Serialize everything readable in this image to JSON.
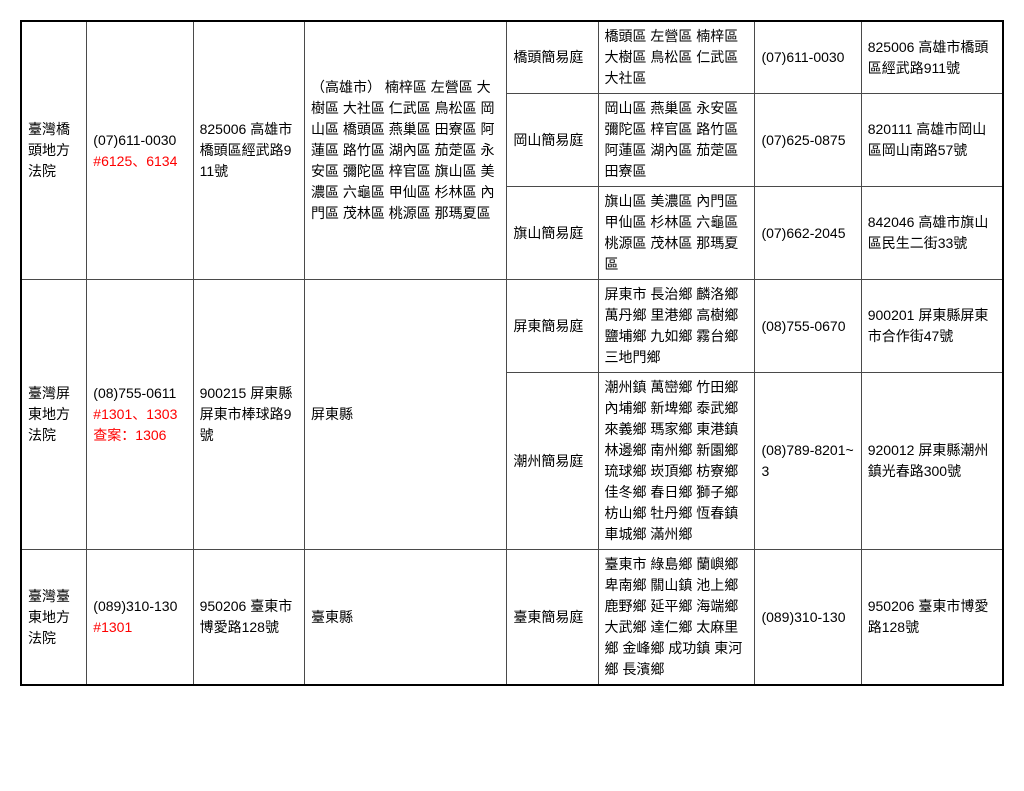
{
  "rows": {
    "qiaotouCourt": "臺灣橋頭地方法院",
    "qiaotouPhone": "(07)611-0030",
    "qiaotouExt": "#6125、6134",
    "qiaotouAddr": "825006 高雄市橋頭區經武路911號",
    "qiaotouJuris": "（高雄市）\n楠梓區 左營區 大樹區 大社區 仁武區 鳥松區 岡山區 橋頭區 燕巢區 田寮區 阿蓮區 路竹區 湖內區 茄萣區 永安區 彌陀區 梓官區 旗山區 美濃區 六龜區 甲仙區 杉林區 內門區 茂林區 桃源區 那瑪夏區",
    "qiaotouSimple": "橋頭簡易庭",
    "qiaotouDist": "橋頭區 左營區 楠梓區 大樹區 鳥松區 仁武區 大社區",
    "qiaotouPhone2": "(07)611-0030",
    "qiaotouAddr2": "825006 高雄市橋頭區經武路911號",
    "gangshanSimple": "岡山簡易庭",
    "gangshanDist": "岡山區 燕巢區 永安區 彌陀區 梓官區 路竹區 阿蓮區 湖內區 茄萣區 田寮區",
    "gangshanPhone2": "(07)625-0875",
    "gangshanAddr2": "820111 高雄市岡山區岡山南路57號",
    "qishanSimple": "旗山簡易庭",
    "qishanDist": "旗山區 美濃區 內門區 甲仙區 杉林區 六龜區 桃源區 茂林區 那瑪夏區",
    "qishanPhone2": "(07)662-2045",
    "qishanAddr2": "842046 高雄市旗山區民生二街33號",
    "pingtungCourt": "臺灣屏東地方法院",
    "pingtungPhone": "(08)755-0611",
    "pingtungExt": "#1301、1303",
    "pingtungExt2": "查案：1306",
    "pingtungAddr": "900215 屏東縣屏東市棒球路9號",
    "pingtungJuris": "屏東縣",
    "pingtungSimple": "屏東簡易庭",
    "pingtungDist": "屏東市 長治鄉 麟洛鄉 萬丹鄉 里港鄉 高樹鄉 鹽埔鄉 九如鄉 霧台鄉 三地門鄉",
    "pingtungPhone2": "(08)755-0670",
    "pingtungAddr2": "900201 屏東縣屏東市合作街47號",
    "chaozhouSimple": "潮州簡易庭",
    "chaozhouDist": "潮州鎮 萬巒鄉 竹田鄉 內埔鄉 新埤鄉 泰武鄉 來義鄉 瑪家鄉 東港鎮 林邊鄉 南州鄉 新園鄉 琉球鄉 崁頂鄉 枋寮鄉 佳冬鄉 春日鄉 獅子鄉 枋山鄉 牡丹鄉 恆春鎮 車城鄉 滿州鄉",
    "chaozhouPhone2": "(08)789-8201~3",
    "chaozhouAddr2": "920012 屏東縣潮州鎮光春路300號",
    "taitungCourt": "臺灣臺東地方法院",
    "taitungPhone": "(089)310-130",
    "taitungExt": "#1301",
    "taitungAddr": "950206 臺東市博愛路128號",
    "taitungJuris": "臺東縣",
    "taitungSimple": "臺東簡易庭",
    "taitungDist": "臺東市 綠島鄉 蘭嶼鄉 卑南鄉 關山鎮 池上鄉 鹿野鄉 延平鄉 海端鄉 大武鄉 達仁鄉 太麻里鄉 金峰鄉 成功鎮 東河鄉 長濱鄉",
    "taitungPhone2": "(089)310-130",
    "taitungAddr2": "950206 臺東市博愛路128號"
  }
}
